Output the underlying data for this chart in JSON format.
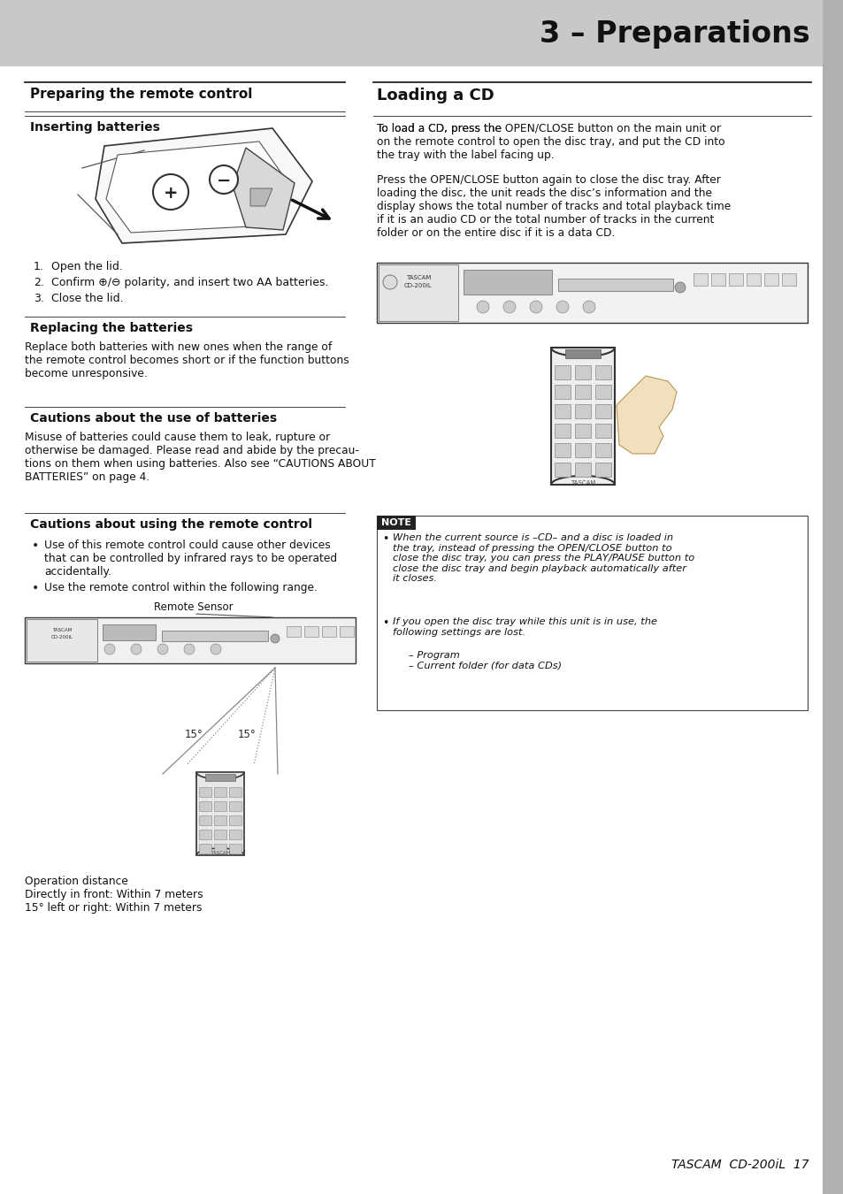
{
  "page_bg": "#ffffff",
  "header_bg": "#c8c8c8",
  "header_text": "3 – Preparations",
  "header_text_color": "#111111",
  "right_stripe_color": "#b0b0b0",
  "section1_title": "Preparing the remote control",
  "section2_title": "Inserting batteries",
  "section3_title": "Replacing the batteries",
  "section4_title": "Cautions about the use of batteries",
  "section5_title": "Cautions about using the remote control",
  "section6_title": "Loading a CD",
  "footer_text": "TASCAM  CD-200iL  17",
  "body_color": "#111111",
  "line_color": "#333333",
  "replacing_text": "Replace both batteries with new ones when the range of\nthe remote control becomes short or if the function buttons\nbecome unresponsive.",
  "cautions_bat_text": "Misuse of batteries could cause them to leak, rupture or\notherwise be damaged. Please read and abide by the precau-\ntions on them when using batteries. Also see “CAUTIONS ABOUT\nBATTERIES” on page 4.",
  "cautions_rc_bullet1": "Use of this remote control could cause other devices\nthat can be controlled by infrared rays to be operated\naccidentally.",
  "cautions_rc_bullet2": "Use the remote control within the following range.",
  "loading_cd_text": "To load a CD, press the OPEN/CLOSE button on the main unit or\non the remote control to open the disc tray, and put the CD into\nthe tray with the label facing up.",
  "loading_cd_text2": "Press the OPEN/CLOSE button again to close the disc tray. After\nloading the disc, the unit reads the disc’s information and the\ndisplay shows the total number of tracks and total playback time\nif it is an audio CD or the total number of tracks in the current\nfolder or on the entire disc if it is a data CD.",
  "note_bullet1_pre": "When the current source is – CD – and a disc is loaded in\nthe tray, instead of pressing the ",
  "note_bullet1_bold1": "OPEN/CLOSE",
  "note_bullet1_mid": " button to\nclose the disc tray, you can press the ",
  "note_bullet1_bold2": "PLAY/PAUSE",
  "note_bullet1_post": " button to\nclose the disc tray and begin playback automatically after\nit closes.",
  "note_bullet2_pre": "If you open the disc tray while this unit is in use, the\nfollowing settings are lost.",
  "note_bullet2_items": "– Program\n– Current folder (for data CDs)",
  "steps": [
    "Open the lid.",
    "Confirm ⊕/⊖ polarity, and insert two AA batteries.",
    "Close the lid."
  ],
  "remote_sensor_label": "Remote Sensor",
  "operation_text": "Operation distance\nDirectly in front: Within 7 meters\n15° left or right: Within 7 meters",
  "angle_label_left": "15°",
  "angle_label_right": "15°",
  "note_label": "NOTE"
}
